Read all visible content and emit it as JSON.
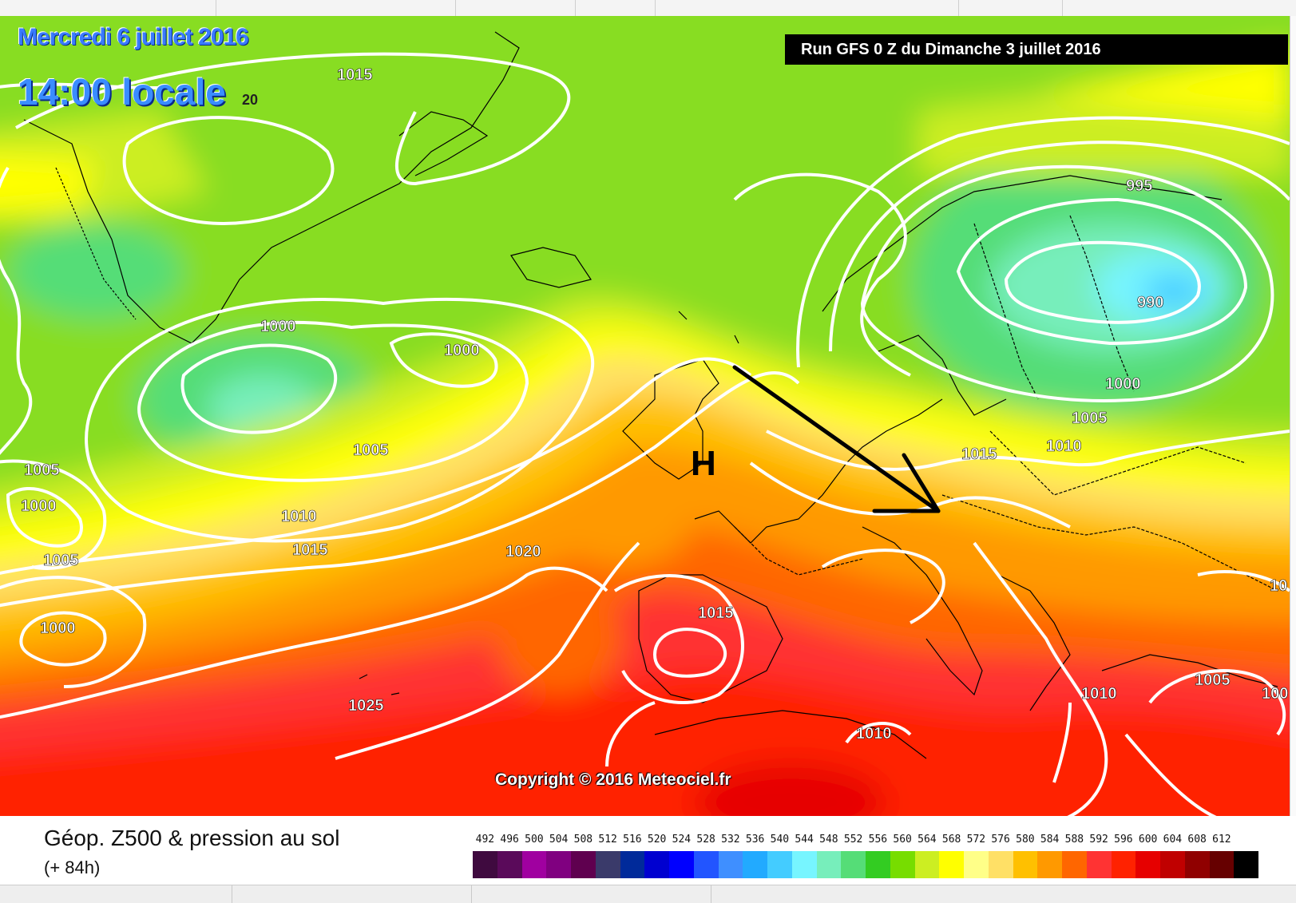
{
  "header": {
    "date": "Mercredi 6 juillet 2016",
    "time": "14:00 locale",
    "time_suffix": "20",
    "run": "Run GFS 0 Z du Dimanche 3 juillet 2016"
  },
  "map": {
    "copyright": "Copyright © 2016 Meteociel.fr",
    "high_marker": "H",
    "arrow_color": "#000000",
    "isobar_color": "#ffffff",
    "isobar_labels": [
      "1015",
      "1000",
      "1000",
      "1005",
      "1010",
      "1015",
      "1020",
      "1025",
      "1005",
      "1000",
      "1005",
      "1000",
      "1015",
      "1010",
      "995",
      "990",
      "1000",
      "1005",
      "1010",
      "1015",
      "1010",
      "1005",
      "100",
      "10"
    ]
  },
  "legend": {
    "title": "Géop. Z500 & pression au sol",
    "subtitle": "(+ 84h)",
    "scale_values": [
      "492",
      "496",
      "500",
      "504",
      "508",
      "512",
      "516",
      "520",
      "524",
      "528",
      "532",
      "536",
      "540",
      "544",
      "548",
      "552",
      "556",
      "560",
      "564",
      "568",
      "572",
      "576",
      "580",
      "584",
      "588",
      "592",
      "596",
      "600",
      "604",
      "608",
      "612"
    ],
    "scale_colors": [
      "#3f0a3f",
      "#5a0a5a",
      "#a000a0",
      "#800080",
      "#5f004f",
      "#3a3a6a",
      "#002a9a",
      "#0000d0",
      "#0000ff",
      "#2255ff",
      "#3f8fff",
      "#22aaff",
      "#44ccff",
      "#77f5ff",
      "#77eebb",
      "#55dd77",
      "#33cc22",
      "#77dd00",
      "#ccee22",
      "#ffff00",
      "#ffff88",
      "#ffe066",
      "#ffc000",
      "#ff9900",
      "#ff6600",
      "#ff3333",
      "#ff2200",
      "#e60000",
      "#c00000",
      "#900000",
      "#660000",
      "#000000"
    ]
  }
}
